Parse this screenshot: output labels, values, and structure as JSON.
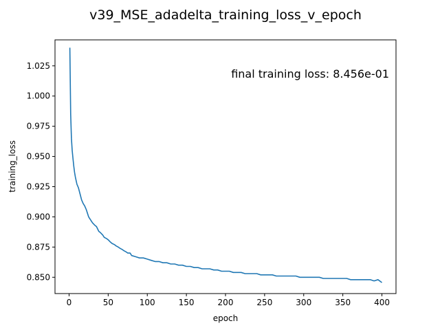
{
  "chart_data": {
    "type": "line",
    "title": "v39_MSE_adadelta_training_loss_v_epoch",
    "xlabel": "epoch",
    "ylabel": "training_loss",
    "annotation": "final training loss: 8.456e-01",
    "xlim": [
      -18,
      418
    ],
    "ylim": [
      0.8365,
      1.0465
    ],
    "xticks": [
      0,
      50,
      100,
      150,
      200,
      250,
      300,
      350,
      400
    ],
    "yticks": [
      0.85,
      0.875,
      0.9,
      0.925,
      0.95,
      0.975,
      1.0,
      1.025
    ],
    "ytick_labels": [
      "0.850",
      "0.875",
      "0.900",
      "0.925",
      "0.950",
      "0.975",
      "1.000",
      "1.025"
    ],
    "grid": false,
    "line_color": "#1f77b4",
    "series": [
      {
        "x": [
          1,
          2,
          3,
          4,
          5,
          6,
          7,
          8,
          10,
          12,
          14,
          16,
          18,
          20,
          22,
          25,
          28,
          30,
          33,
          35,
          38,
          40,
          43,
          45,
          48,
          50,
          53,
          55,
          58,
          60,
          63,
          65,
          68,
          70,
          73,
          75,
          78,
          80,
          85,
          90,
          95,
          100,
          105,
          110,
          115,
          120,
          125,
          130,
          135,
          140,
          145,
          150,
          155,
          160,
          165,
          170,
          175,
          180,
          185,
          190,
          195,
          200,
          205,
          210,
          215,
          220,
          225,
          230,
          235,
          240,
          245,
          250,
          255,
          260,
          265,
          270,
          275,
          280,
          285,
          290,
          295,
          300,
          305,
          310,
          315,
          320,
          325,
          330,
          335,
          340,
          345,
          350,
          355,
          360,
          365,
          370,
          375,
          380,
          385,
          390,
          395,
          400
        ],
        "y": [
          1.04,
          0.985,
          0.965,
          0.955,
          0.948,
          0.942,
          0.937,
          0.933,
          0.927,
          0.924,
          0.919,
          0.914,
          0.911,
          0.909,
          0.906,
          0.9,
          0.897,
          0.895,
          0.893,
          0.892,
          0.888,
          0.887,
          0.885,
          0.883,
          0.882,
          0.881,
          0.879,
          0.878,
          0.877,
          0.876,
          0.875,
          0.874,
          0.873,
          0.872,
          0.871,
          0.87,
          0.87,
          0.868,
          0.867,
          0.866,
          0.866,
          0.865,
          0.864,
          0.863,
          0.863,
          0.862,
          0.862,
          0.861,
          0.861,
          0.86,
          0.86,
          0.859,
          0.859,
          0.858,
          0.858,
          0.857,
          0.857,
          0.857,
          0.856,
          0.856,
          0.855,
          0.855,
          0.855,
          0.854,
          0.854,
          0.854,
          0.853,
          0.853,
          0.853,
          0.853,
          0.852,
          0.852,
          0.852,
          0.852,
          0.851,
          0.851,
          0.851,
          0.851,
          0.851,
          0.851,
          0.85,
          0.85,
          0.85,
          0.85,
          0.85,
          0.85,
          0.849,
          0.849,
          0.849,
          0.849,
          0.849,
          0.849,
          0.849,
          0.848,
          0.848,
          0.848,
          0.848,
          0.848,
          0.848,
          0.847,
          0.848,
          0.8456
        ]
      }
    ]
  }
}
